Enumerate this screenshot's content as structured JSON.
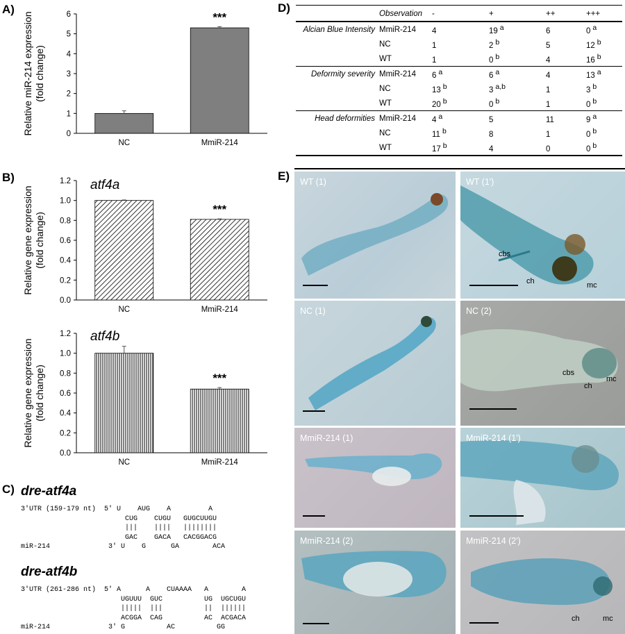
{
  "panels": {
    "A": "A)",
    "B": "B)",
    "C": "C)",
    "D": "D)",
    "E": "E)"
  },
  "chart_data": [
    {
      "type": "bar",
      "title": "",
      "ylabel": "Relative miR-214 expression (fold change)",
      "ylabel_lines": [
        "Relative miR-214 expression",
        "(fold change)"
      ],
      "categories": [
        "NC",
        "MmiR-214"
      ],
      "values": [
        1.0,
        5.3
      ],
      "errors": [
        0.13,
        0.06
      ],
      "ylim": [
        0,
        6
      ],
      "yticks": [
        "0",
        "1",
        "2",
        "3",
        "4",
        "5",
        "6"
      ],
      "significance": [
        "",
        "***"
      ],
      "fill": "#7f7f7f"
    },
    {
      "type": "bar",
      "title": "atf4a",
      "ylabel": "Relative gene expression (fold change)",
      "ylabel_lines": [
        "Relative gene expression",
        "(fold change)"
      ],
      "categories": [
        "NC",
        "MmiR-214"
      ],
      "values": [
        1.0,
        0.81
      ],
      "errors": [
        0.005,
        0.005
      ],
      "ylim": [
        0,
        1.2
      ],
      "yticks": [
        "0.0",
        "0.2",
        "0.4",
        "0.6",
        "0.8",
        "1.0",
        "1.2"
      ],
      "significance": [
        "",
        "***"
      ],
      "fill": "diagonal-hatch"
    },
    {
      "type": "bar",
      "title": "atf4b",
      "ylabel": "Relative gene expression (fold change)",
      "ylabel_lines": [
        "Relative gene expression",
        "(fold change)"
      ],
      "categories": [
        "NC",
        "MmiR-214"
      ],
      "values": [
        1.0,
        0.64
      ],
      "errors": [
        0.07,
        0.015
      ],
      "ylim": [
        0,
        1.2
      ],
      "yticks": [
        "0.0",
        "0.2",
        "0.4",
        "0.6",
        "0.8",
        "1.0",
        "1.2"
      ],
      "significance": [
        "",
        "***"
      ],
      "fill": "vertical-hatch"
    }
  ],
  "alignments": [
    {
      "gene": "dre-atf4a",
      "lines": [
        "3'UTR (159-179 nt)  5' U    AUG    A         A",
        "                         CUG    CUGU   GUGCUUGU",
        "                         |||    ||||   ||||||||",
        "                         GAC    GACA   CACGGACG",
        "miR-214              3' U    G      GA        ACA"
      ]
    },
    {
      "gene": "dre-atf4b",
      "lines": [
        "3'UTR (261-286 nt)  5' A      A    CUAAAA   A        A",
        "                        UGUUU  GUC          UG  UGCUGU",
        "                        |||||  |||          ||  ||||||",
        "                        ACGGA  CAG          AC  ACGACA",
        "miR-214              3' G          AC          GG"
      ]
    }
  ],
  "table": {
    "header": [
      "Observation",
      "-",
      "+",
      "++",
      "+++"
    ],
    "groups": [
      {
        "name": "Alcian Blue Intensity",
        "rows": [
          {
            "label": "MmiR-214",
            "cells": [
              [
                "4",
                ""
              ],
              [
                "19",
                "a"
              ],
              [
                "6",
                ""
              ],
              [
                "0",
                "a"
              ]
            ]
          },
          {
            "label": "NC",
            "cells": [
              [
                "1",
                ""
              ],
              [
                "2",
                "b"
              ],
              [
                "5",
                ""
              ],
              [
                "12",
                "b"
              ]
            ]
          },
          {
            "label": "WT",
            "cells": [
              [
                "1",
                ""
              ],
              [
                "0",
                "b"
              ],
              [
                "4",
                ""
              ],
              [
                "16",
                "b"
              ]
            ]
          }
        ]
      },
      {
        "name": "Deformity severity",
        "rows": [
          {
            "label": "MmiR-214",
            "cells": [
              [
                "6",
                "a"
              ],
              [
                "6",
                "a"
              ],
              [
                "4",
                ""
              ],
              [
                "13",
                "a"
              ]
            ]
          },
          {
            "label": "NC",
            "cells": [
              [
                "13",
                "b"
              ],
              [
                "3",
                "a,b"
              ],
              [
                "1",
                ""
              ],
              [
                "3",
                "b"
              ]
            ]
          },
          {
            "label": "WT",
            "cells": [
              [
                "20",
                "b"
              ],
              [
                "0",
                "b"
              ],
              [
                "1",
                ""
              ],
              [
                "0",
                "b"
              ]
            ]
          }
        ]
      },
      {
        "name": "Head deformities",
        "rows": [
          {
            "label": "MmiR-214",
            "cells": [
              [
                "4",
                "a"
              ],
              [
                "5",
                ""
              ],
              [
                "11",
                ""
              ],
              [
                "9",
                "a"
              ]
            ]
          },
          {
            "label": "NC",
            "cells": [
              [
                "11",
                "b"
              ],
              [
                "8",
                ""
              ],
              [
                "1",
                ""
              ],
              [
                "0",
                "b"
              ]
            ]
          },
          {
            "label": "WT",
            "cells": [
              [
                "17",
                "b"
              ],
              [
                "4",
                ""
              ],
              [
                "0",
                ""
              ],
              [
                "0",
                "b"
              ]
            ]
          }
        ]
      }
    ]
  },
  "photos": [
    {
      "label": "WT (1)"
    },
    {
      "label": "WT (1')",
      "ann": [
        "cbs",
        "ch",
        "mc"
      ]
    },
    {
      "label": "NC (1)"
    },
    {
      "label": "NC (2)",
      "ann": [
        "cbs",
        "ch",
        "mc"
      ]
    },
    {
      "label": "MmiR-214 (1)"
    },
    {
      "label": "MmiR-214 (1')"
    },
    {
      "label": "MmiR-214 (2)"
    },
    {
      "label": "MmiR-214 (2')",
      "ann": [
        "ch",
        "mc"
      ]
    }
  ]
}
